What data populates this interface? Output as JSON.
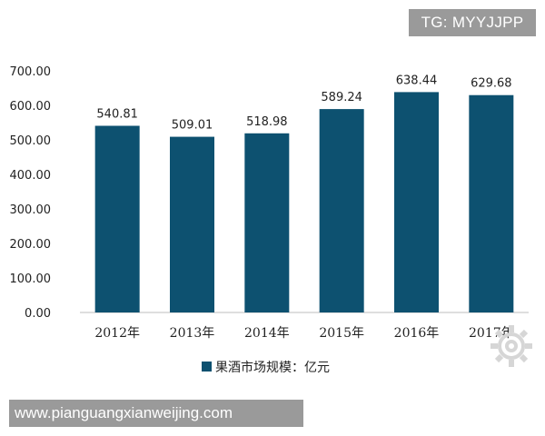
{
  "chart_data": {
    "type": "bar",
    "categories": [
      "2012年",
      "2013年",
      "2014年",
      "2015年",
      "2016年",
      "2017年"
    ],
    "values": [
      540.81,
      509.01,
      518.98,
      589.24,
      638.44,
      629.68
    ],
    "data_labels": [
      "540.81",
      "509.01",
      "518.98",
      "589.24",
      "638.44",
      "629.68"
    ],
    "y_ticks": [
      "0.00",
      "100.00",
      "200.00",
      "300.00",
      "400.00",
      "500.00",
      "600.00",
      "700.00"
    ],
    "ylim": [
      0,
      700
    ],
    "grid": false,
    "legend": {
      "position": "bottom",
      "label": "果酒市场规模：亿元"
    },
    "bar_color": "#0d5170"
  },
  "watermarks": {
    "top": "TG: MYYJJPP",
    "bottom": "www.pianguangxianweijing.com"
  },
  "icons": {
    "corner": "gear-icon"
  }
}
